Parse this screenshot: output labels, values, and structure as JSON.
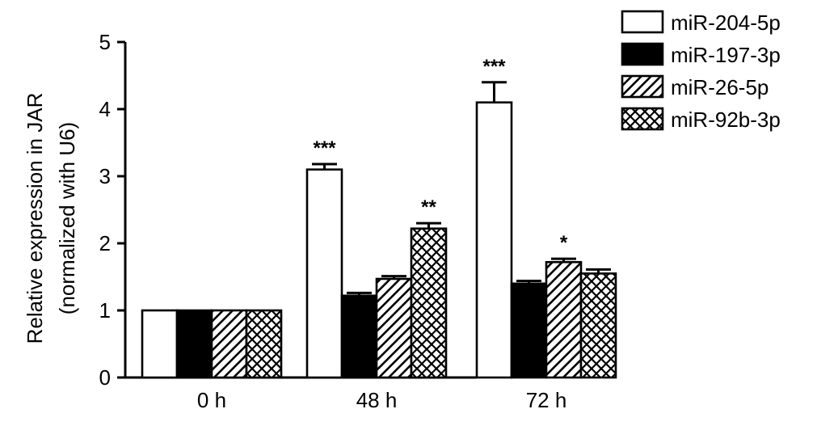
{
  "chart_data": {
    "type": "bar",
    "ylabel_line1": "Relative expression in JAR",
    "ylabel_line2": "(normalized with U6)",
    "categories": [
      "0 h",
      "48 h",
      "72 h"
    ],
    "ylim": [
      0,
      5
    ],
    "yticks": [
      0,
      1,
      2,
      3,
      4,
      5
    ],
    "legend_position": "top-right",
    "grid": false,
    "series": [
      {
        "name": "miR-204-5p",
        "values": [
          1.0,
          3.1,
          4.1
        ],
        "errors": [
          0,
          0.08,
          0.3
        ],
        "pattern": "open",
        "significance": [
          "",
          "***",
          "***"
        ]
      },
      {
        "name": "miR-197-3p",
        "values": [
          1.0,
          1.22,
          1.4
        ],
        "errors": [
          0,
          0.04,
          0.04
        ],
        "pattern": "solid",
        "significance": [
          "",
          "",
          ""
        ]
      },
      {
        "name": "miR-26-5p",
        "values": [
          1.0,
          1.47,
          1.72
        ],
        "errors": [
          0,
          0.04,
          0.05
        ],
        "pattern": "diagonal",
        "significance": [
          "",
          "",
          "*"
        ]
      },
      {
        "name": "miR-92b-3p",
        "values": [
          1.0,
          2.22,
          1.55
        ],
        "errors": [
          0,
          0.08,
          0.06
        ],
        "pattern": "crosshatch",
        "significance": [
          "",
          "**",
          ""
        ]
      }
    ]
  }
}
